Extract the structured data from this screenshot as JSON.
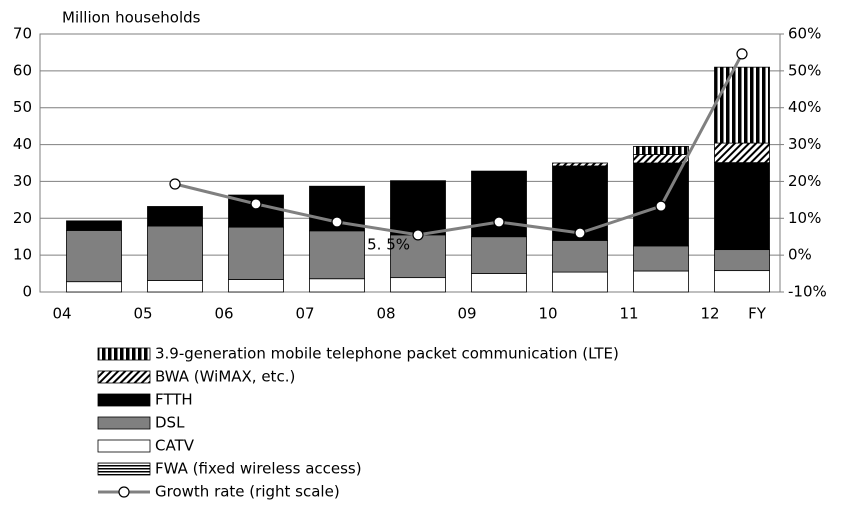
{
  "chart_data": {
    "type": "bar",
    "stacked": true,
    "y_label": "Million households",
    "x_label": "FY",
    "categories": [
      "04",
      "05",
      "06",
      "07",
      "08",
      "09",
      "10",
      "11",
      "12"
    ],
    "ylim": [
      0,
      70
    ],
    "yticks": [
      0,
      10,
      20,
      30,
      40,
      50,
      60,
      70
    ],
    "y2lim": [
      -10,
      60
    ],
    "y2ticks": [
      {
        "value": -10,
        "label": "-10%"
      },
      {
        "value": 0,
        "label": "0%"
      },
      {
        "value": 10,
        "label": "10%"
      },
      {
        "value": 20,
        "label": "20%"
      },
      {
        "value": 30,
        "label": "30%"
      },
      {
        "value": 40,
        "label": "40%"
      },
      {
        "value": 50,
        "label": "50%"
      },
      {
        "value": 60,
        "label": "60%"
      }
    ],
    "grid": true,
    "series": [
      {
        "name": "3.9-generation mobile telephone packet communication (LTE)",
        "pattern": "vertical-stripes",
        "color": "#000000",
        "values": [
          0,
          0,
          0,
          0,
          0,
          0,
          0,
          2.2,
          20.6
        ]
      },
      {
        "name": "BWA (WiMAX, etc.)",
        "pattern": "diagonal-stripes",
        "color": "#000000",
        "values": [
          0,
          0,
          0,
          0,
          0,
          0,
          0.8,
          2.3,
          5.3
        ]
      },
      {
        "name": "FTTH",
        "pattern": "solid",
        "color": "#000000",
        "values": [
          2.6,
          5.3,
          8.7,
          12.1,
          14.7,
          17.8,
          20.2,
          22.5,
          23.6
        ]
      },
      {
        "name": "DSL",
        "pattern": "solid",
        "color": "#808080",
        "values": [
          13.9,
          14.8,
          14.2,
          13.0,
          11.6,
          10.0,
          8.6,
          6.8,
          5.7
        ]
      },
      {
        "name": "CATV",
        "pattern": "solid",
        "color": "#ffffff",
        "values": [
          2.8,
          3.1,
          3.4,
          3.6,
          3.9,
          5.0,
          5.4,
          5.7,
          5.8
        ]
      },
      {
        "name": "FWA (fixed wireless access)",
        "pattern": "horizontal-stripes",
        "color": "#000000",
        "values": [
          0,
          0,
          0,
          0,
          0,
          0,
          0,
          0,
          0
        ]
      },
      {
        "name": "Growth rate (right scale)",
        "type": "line",
        "axis": "y2",
        "color": "#808080",
        "values": [
          null,
          19.3,
          13.9,
          9.0,
          5.5,
          9.0,
          6.0,
          13.3,
          54.6
        ],
        "value_labels": [
          null,
          null,
          null,
          null,
          "5. 5%",
          null,
          null,
          null,
          null
        ]
      }
    ]
  }
}
